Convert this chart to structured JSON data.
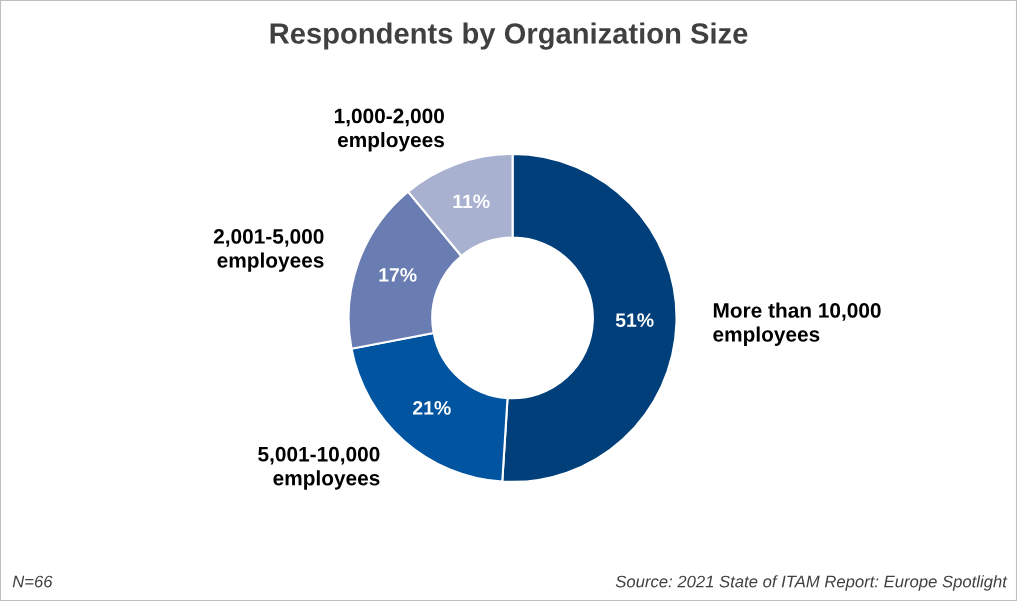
{
  "chart_data": {
    "type": "donut",
    "title": "Respondents by Organization Size",
    "categories": [
      "More than 10,000 employees",
      "5,001-10,000 employees",
      "2,001-5,000 employees",
      "1,000-2,000 employees"
    ],
    "values": [
      51,
      21,
      17,
      11
    ],
    "value_labels": [
      "51%",
      "21%",
      "17%",
      "11%"
    ],
    "colors": [
      "#003f7a",
      "#0054a0",
      "#6a7db2",
      "#a8b2d0"
    ],
    "annotations": [
      "N=66",
      "Source: 2021 State of ITAM Report: Europe Spotlight"
    ]
  }
}
